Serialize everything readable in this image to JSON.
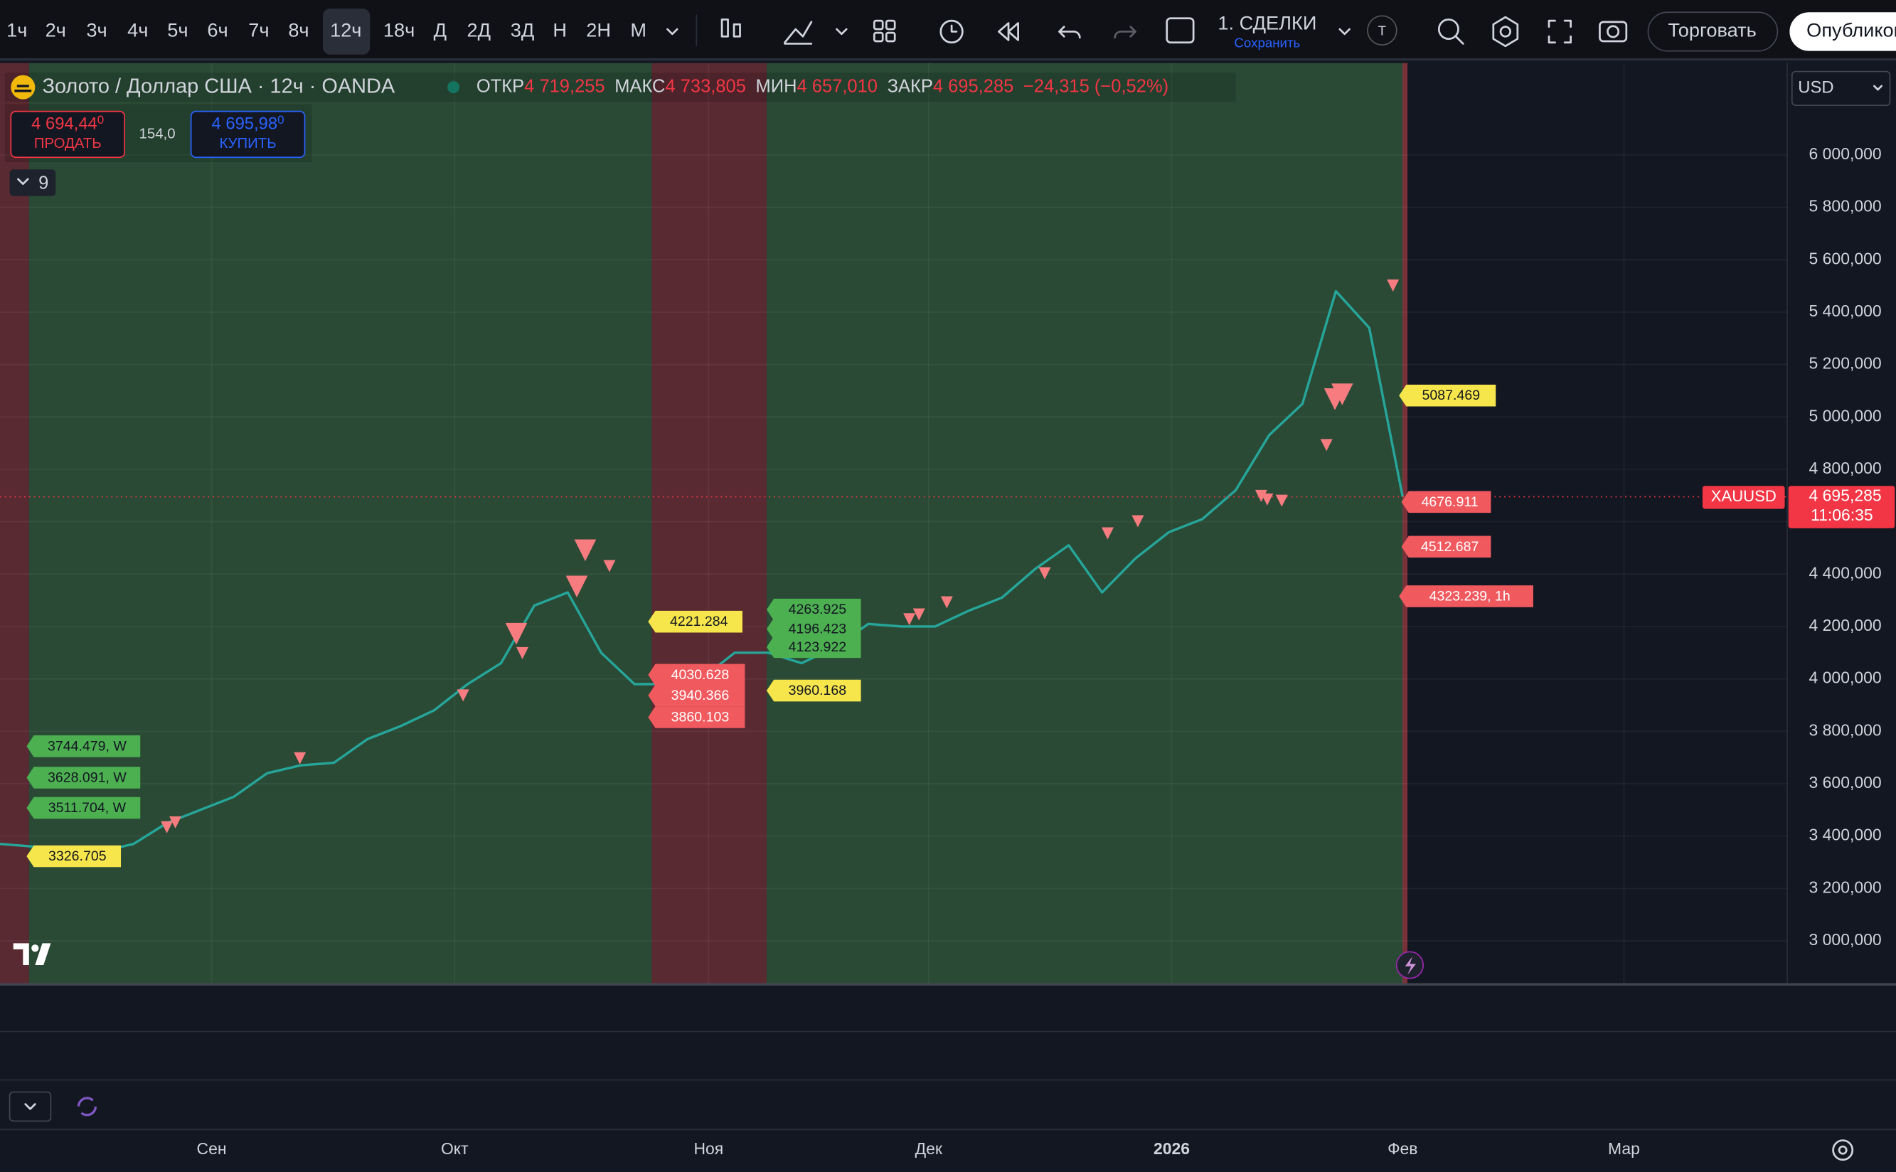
{
  "toolbar": {
    "intervals": [
      "1ч",
      "2ч",
      "3ч",
      "4ч",
      "5ч",
      "6ч",
      "7ч",
      "8ч",
      "12ч",
      "18ч",
      "Д",
      "2Д",
      "3Д",
      "Н",
      "2Н",
      "М"
    ],
    "active_interval": "12ч",
    "layout_name": "1. СДЕЛКИ",
    "save": "Сохранить",
    "avatar": "Т",
    "trade": "Торговать",
    "publish": "Опубликовать"
  },
  "legend": {
    "symbol": "Золото / Доллар США · 12ч · OANDA",
    "open_label": "ОТКР",
    "open": "4 719,255",
    "high_label": "МАКС",
    "high": "4 733,805",
    "low_label": "МИН",
    "low": "4 657,010",
    "close_label": "ЗАКР",
    "close": "4 695,285",
    "change": "−24,315 (−0,52%)"
  },
  "order_panel": {
    "sell_price": "4 694,44",
    "sell_price_tail": "0",
    "sell_label": "ПРОДАТЬ",
    "spread": "154,0",
    "buy_price": "4 695,98",
    "buy_price_tail": "0",
    "buy_label": "КУПИТЬ"
  },
  "indicators_count": "9",
  "currency": "USD",
  "time_axis": [
    "Сен",
    "Окт",
    "Ноя",
    "Дек",
    "2026",
    "Фев",
    "Мар"
  ],
  "annotations": [
    {
      "text": "5087.469",
      "color": "#f7e64b"
    },
    {
      "text": "4676.911",
      "color": "#f05a5f"
    },
    {
      "text": "4512.687",
      "color": "#f05a5f"
    },
    {
      "text": "4323.239, 1h",
      "color": "#f05a5f"
    },
    {
      "text": "4221.284",
      "color": "#f7e64b"
    },
    {
      "text": "4263.925",
      "color": "#4caf50"
    },
    {
      "text": "4196.423",
      "color": "#4caf50"
    },
    {
      "text": "4123.922",
      "color": "#4caf50"
    },
    {
      "text": "4030.628",
      "color": "#f05a5f"
    },
    {
      "text": "3940.366",
      "color": "#f05a5f"
    },
    {
      "text": "3860.103",
      "color": "#f05a5f"
    },
    {
      "text": "3960.168",
      "color": "#f7e64b"
    },
    {
      "text": "3744.479, W",
      "color": "#4caf50"
    },
    {
      "text": "3628.091, W",
      "color": "#4caf50"
    },
    {
      "text": "3511.704, W",
      "color": "#4caf50"
    },
    {
      "text": "3326.705",
      "color": "#f7e64b"
    }
  ],
  "chart_data": {
    "type": "line",
    "series": [
      {
        "name": "XAUUSD",
        "color": "#26a69a",
        "values": [
          3370,
          3360,
          3340,
          3340,
          3370,
          3450,
          3500,
          3550,
          3640,
          3670,
          3680,
          3770,
          3820,
          3880,
          3980,
          4060,
          4280,
          4330,
          4100,
          3980,
          3980,
          4000,
          4100,
          4100,
          4060,
          4120,
          4210,
          4200,
          4200,
          4260,
          4310,
          4420,
          4510,
          4330,
          4460,
          4560,
          4610,
          4720,
          4930,
          5050,
          5480,
          5340,
          4695.285
        ]
      }
    ],
    "ylim": [
      2838.462,
      6350.769
    ],
    "yticks": [
      {
        "value": 6000,
        "label": "6 000,000"
      },
      {
        "value": 5800,
        "label": "5 800,000"
      },
      {
        "value": 5600,
        "label": "5 600,000"
      },
      {
        "value": 5400,
        "label": "5 400,000"
      },
      {
        "value": 5200,
        "label": "5 200,000"
      },
      {
        "value": 5000,
        "label": "5 000,000"
      },
      {
        "value": 4800,
        "label": "4 800,000"
      },
      {
        "value": 4600,
        "label": "4 600,000"
      },
      {
        "value": 4400,
        "label": "4 400,000"
      },
      {
        "value": 4200,
        "label": "4 200,000"
      },
      {
        "value": 4000,
        "label": "4 000,000"
      },
      {
        "value": 3800,
        "label": "3 800,000"
      },
      {
        "value": 3600,
        "label": "3 600,000"
      },
      {
        "value": 3400,
        "label": "3 400,000"
      },
      {
        "value": 3200,
        "label": "3 200,000"
      },
      {
        "value": 3000,
        "label": "3 000,000"
      }
    ],
    "grid": true,
    "current_price": {
      "symbol": "XAUUSD",
      "value": 4695.285,
      "label": "4 695,285",
      "countdown": "11:06:35"
    }
  }
}
